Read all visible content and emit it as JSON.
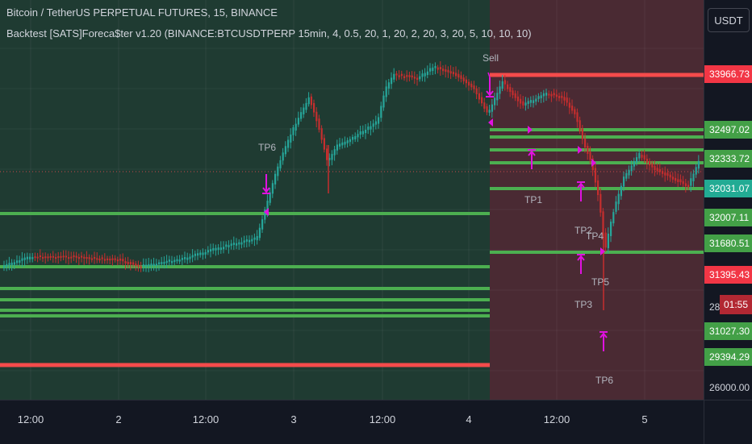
{
  "header": {
    "symbol_title": "Bitcoin / TetherUS PERPETUAL FUTURES, 15, BINANCE",
    "study_title": "Backtest [SATS]Foreca$ter v1.20 (BINANCE:BTCUSDTPERP 15min, 4, 0.5, 20, 1, 20, 2, 20, 3, 20, 5, 10, 10, 10)",
    "currency_button": "USDT"
  },
  "colors": {
    "background": "#131722",
    "left_zone": "#1f3b32",
    "right_zone": "#4a2a33",
    "level_green": "#4caf50",
    "level_red": "#f44b4b",
    "marker_magenta": "#e012e0",
    "candle_up": "#26a69a",
    "candle_down": "#c62e2e"
  },
  "price_axis": {
    "tags": [
      {
        "label": "33966.73",
        "kind": "red"
      },
      {
        "label": "32497.02",
        "kind": "green"
      },
      {
        "label": "32333.72",
        "kind": "green"
      },
      {
        "label": "32031.07",
        "kind": "teal"
      },
      {
        "label": "32007.11",
        "kind": "green"
      },
      {
        "label": "31680.51",
        "kind": "green"
      },
      {
        "label": "31395.43",
        "kind": "red"
      },
      {
        "label": "28",
        "kind": "plain"
      },
      {
        "label": "31027.30",
        "kind": "green"
      },
      {
        "label": "29394.29",
        "kind": "green"
      },
      {
        "label": "26000.00",
        "kind": "plain"
      }
    ],
    "countdown": "01:55"
  },
  "time_axis": {
    "labels": [
      "12:00",
      "2",
      "12:00",
      "3",
      "12:00",
      "4",
      "12:00",
      "5"
    ]
  },
  "annotations": {
    "sell": "Sell",
    "tp_labels": [
      "TP6",
      "TP1",
      "TP2",
      "TP4",
      "TP5",
      "TP3",
      "TP6"
    ]
  }
}
